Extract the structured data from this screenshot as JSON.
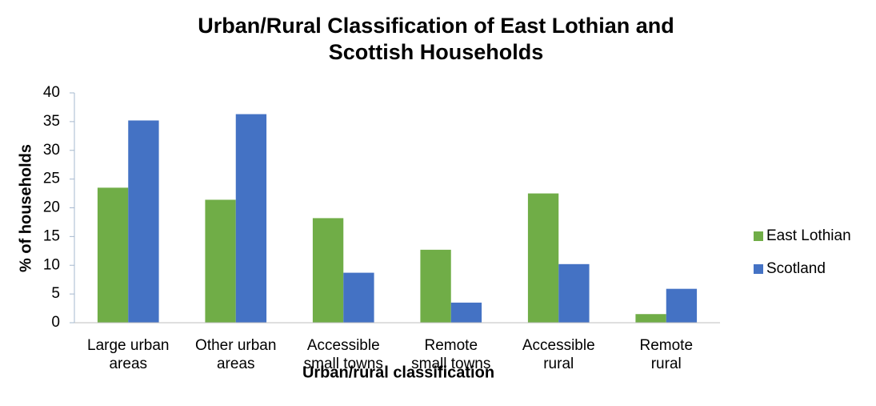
{
  "chart_data": {
    "type": "bar",
    "title": "Urban/Rural Classification of East Lothian and Scottish Households",
    "x_label": "Urban/rural classification",
    "y_label": "% of households",
    "categories": [
      "Large urban\nareas",
      "Other urban\nareas",
      "Accessible\nsmall towns",
      "Remote\nsmall towns",
      "Accessible\nrural",
      "Remote\nrural"
    ],
    "series": [
      {
        "name": "East Lothian",
        "color": "#70ad47",
        "values": [
          23.5,
          21.4,
          18.2,
          12.7,
          22.5,
          1.5
        ]
      },
      {
        "name": "Scotland",
        "color": "#4472c4",
        "values": [
          35.2,
          36.3,
          8.7,
          3.5,
          10.2,
          5.9
        ]
      }
    ],
    "ylim": [
      0,
      40
    ],
    "yticks": [
      0,
      5,
      10,
      15,
      20,
      25,
      30,
      35,
      40
    ],
    "grid": false,
    "legend": "right"
  }
}
